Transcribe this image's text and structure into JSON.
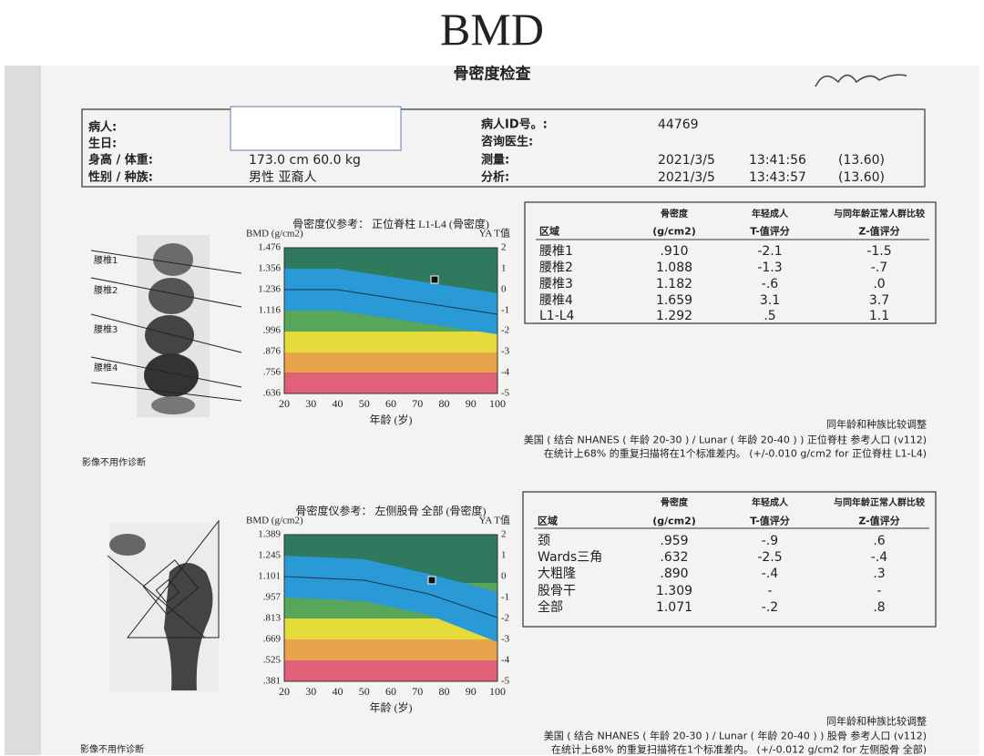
{
  "title": "BMD",
  "report": {
    "heading": "骨密度检查",
    "patient": {
      "labels": [
        "病人:",
        "生日:",
        "身高 / 体重:",
        "性别 / 种族:"
      ],
      "height_weight": "173.0 cm   60.0 kg",
      "sex_race": "男性   亚裔人",
      "right_labels": [
        "病人ID号。:",
        "咨询医生:",
        "测量:",
        "分析:"
      ],
      "id": "44769",
      "measure": [
        "2021/3/5",
        "13:41:56",
        "(13.60)"
      ],
      "analysis": [
        "2021/3/5",
        "13:43:57",
        "(13.60)"
      ]
    },
    "spine_regions": [
      "腰椎1",
      "腰椎2",
      "腰椎3",
      "腰椎4"
    ],
    "spine_chart": {
      "title": "骨密度仪参考： 正位脊柱 L1-L4 (骨密度)",
      "y_label": "BMD (g/cm2)",
      "t_label": "YA T值",
      "bmd_ticks": [
        "1.476",
        "1.356",
        "1.236",
        "1.116",
        ".996",
        ".876",
        ".756",
        ".636"
      ],
      "t_ticks": [
        "2",
        "1",
        "0",
        "-1",
        "-2",
        "-3",
        "-4",
        "-5"
      ],
      "age_ticks": [
        "20",
        "30",
        "40",
        "50",
        "60",
        "70",
        "80",
        "90",
        "100"
      ],
      "x_label": "年龄 (岁)"
    },
    "spine_table": {
      "header_top": [
        "骨密度",
        "年轻成人",
        "与同年龄正常人群比较"
      ],
      "header_bottom": [
        "区域",
        "(g/cm2)",
        "T-值评分",
        "Z-值评分"
      ],
      "rows": [
        [
          "腰椎1",
          ".910",
          "-2.1",
          "-1.5"
        ],
        [
          "腰椎2",
          "1.088",
          "-1.3",
          "-.7"
        ],
        [
          "腰椎3",
          "1.182",
          "-.6",
          ".0"
        ],
        [
          "腰椎4",
          "1.659",
          "3.1",
          "3.7"
        ],
        [
          "L1-L4",
          "1.292",
          ".5",
          "1.1"
        ]
      ]
    },
    "spine_notes": [
      "同年龄和种族比较调整",
      "美国 ( 结合 NHANES ( 年龄 20-30 ) / Lunar ( 年龄 20-40 ) ) 正位脊柱 参考人口 (v112)",
      "在统计上68% 的重复扫描将在1个标准差内。 (+/-0.010 g/cm2 for 正位脊柱 L1-L4)"
    ],
    "disclaimer": "影像不用作诊断",
    "hip_chart": {
      "title": "骨密度仪参考： 左侧股骨 全部 (骨密度)",
      "y_label": "BMD (g/cm2)",
      "t_label": "YA T值",
      "bmd_ticks": [
        "1.389",
        "1.245",
        "1.101",
        ".957",
        ".813",
        ".669",
        ".525",
        ".381"
      ],
      "t_ticks": [
        "2",
        "1",
        "0",
        "-1",
        "-2",
        "-3",
        "-4",
        "-5"
      ],
      "age_ticks": [
        "20",
        "30",
        "40",
        "50",
        "60",
        "70",
        "80",
        "90",
        "100"
      ],
      "x_label": "年龄 (岁)"
    },
    "hip_table": {
      "header_top": [
        "骨密度",
        "年轻成人",
        "与同年龄正常人群比较"
      ],
      "header_bottom": [
        "区域",
        "(g/cm2)",
        "T-值评分",
        "Z-值评分"
      ],
      "rows": [
        [
          "颈",
          ".959",
          "-.9",
          ".6"
        ],
        [
          "Wards三角",
          ".632",
          "-2.5",
          "-.4"
        ],
        [
          "大粗隆",
          ".890",
          "-.4",
          ".3"
        ],
        [
          "股骨干",
          "1.309",
          "-",
          "-"
        ],
        [
          "全部",
          "1.071",
          "-.2",
          ".8"
        ]
      ]
    },
    "hip_notes": [
      "同年龄和种族比较调整",
      "美国 ( 结合 NHANES ( 年龄 20-30 ) / Lunar ( 年龄 20-40 ) ) 股骨 参考人口 (v112)",
      "在统计上68% 的重复扫描将在1个标准差内。 (+/-0.012 g/cm2 for 左侧股骨 全部)"
    ],
    "hip_disclaimer": "影像不用作诊断"
  }
}
